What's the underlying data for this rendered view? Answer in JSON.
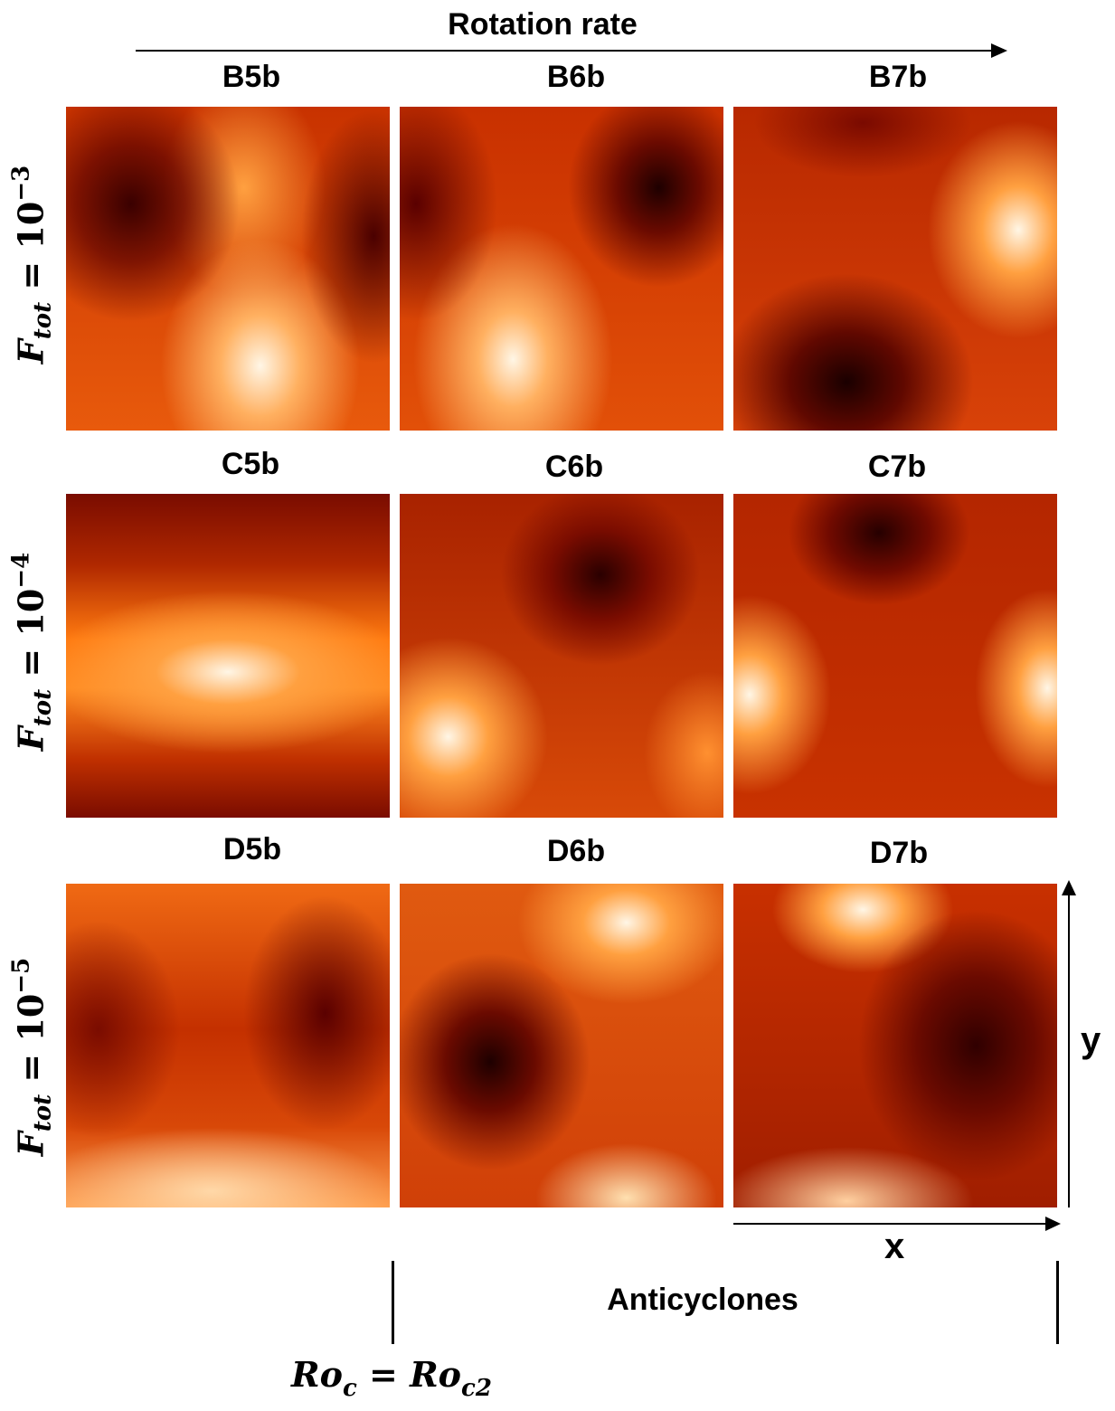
{
  "header": {
    "rotation_label": "Rotation rate"
  },
  "rows": [
    {
      "label_var": "F",
      "label_sub": "tot",
      "label_rest": " = 10",
      "label_exp": "−3",
      "panels": [
        "B5b",
        "B6b",
        "B7b"
      ]
    },
    {
      "label_var": "F",
      "label_sub": "tot",
      "label_rest": " = 10",
      "label_exp": "−4",
      "panels": [
        "C5b",
        "C6b",
        "C7b"
      ]
    },
    {
      "label_var": "F",
      "label_sub": "tot",
      "label_rest": " = 10",
      "label_exp": "−5",
      "panels": [
        "D5b",
        "D6b",
        "D7b"
      ]
    }
  ],
  "axes": {
    "x_label": "x",
    "y_label": "y"
  },
  "annotations": {
    "anticyclones_label": "Anticyclones",
    "ro_var": "Ro",
    "ro_sub1": "c",
    "ro_eq": " = ",
    "ro_var2": "Ro",
    "ro_sub2": "c2"
  },
  "colors": {
    "dark": "#3a0000",
    "mid": "#b52800",
    "bright": "#ff7a10",
    "white": "#fff6e6"
  }
}
